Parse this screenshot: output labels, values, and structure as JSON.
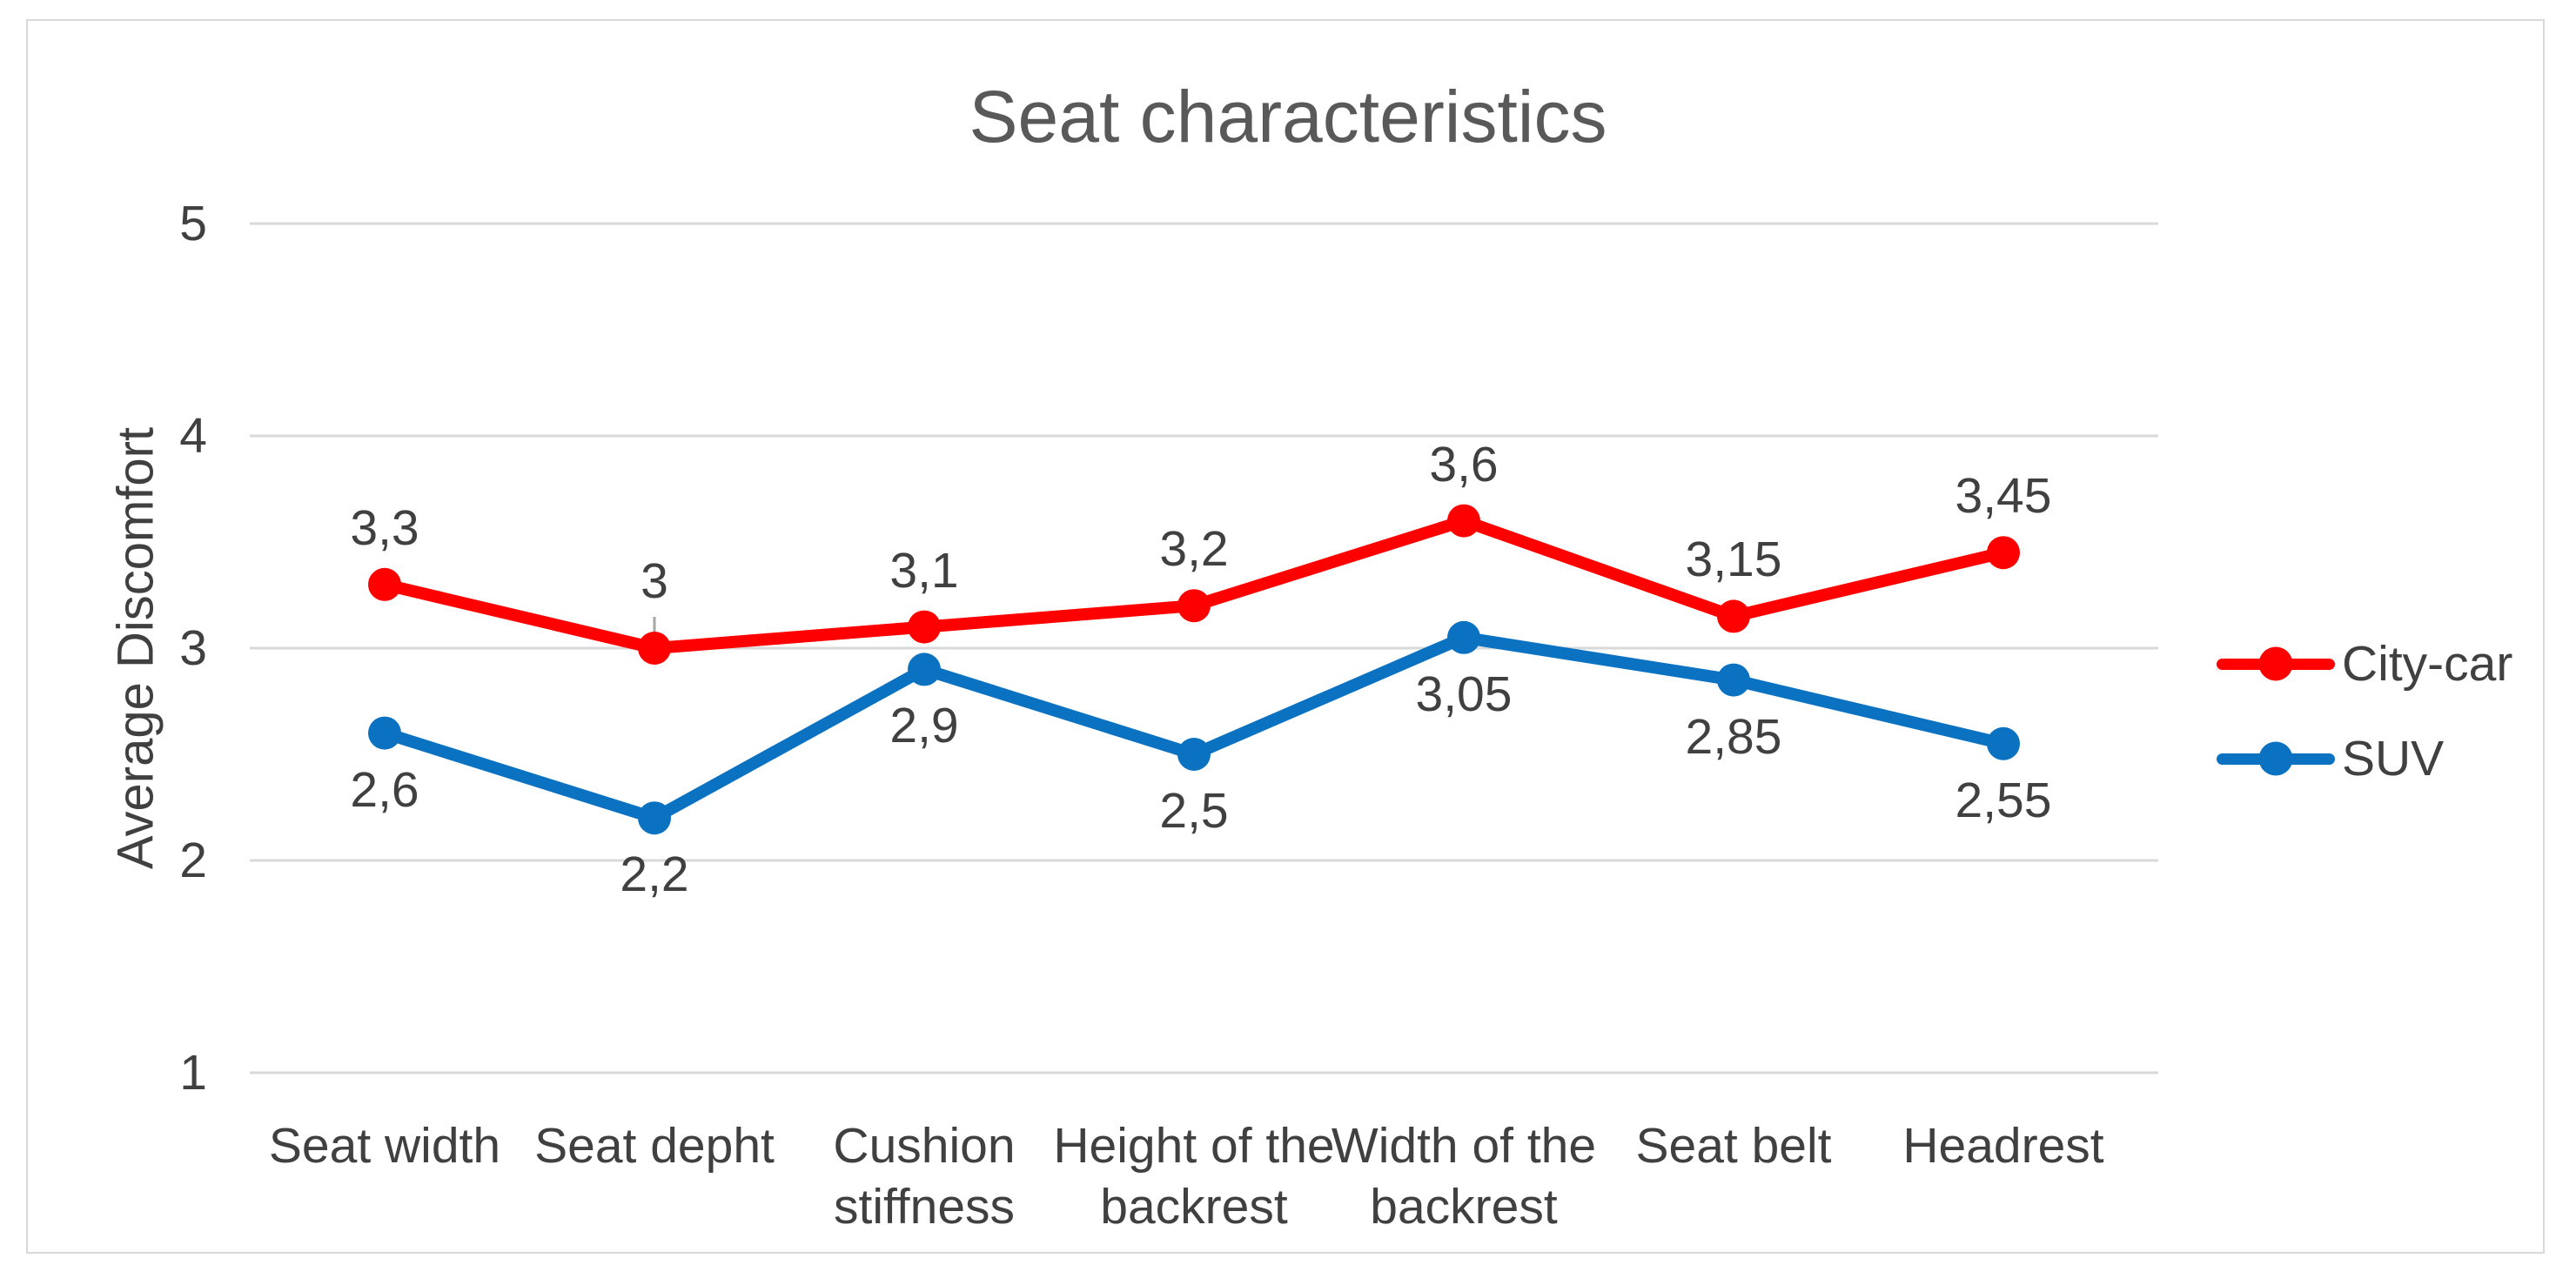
{
  "chart_data": {
    "type": "line",
    "title": "Seat characteristics",
    "ylabel": "Average Discomfort",
    "xlabel": "",
    "ylim": [
      1,
      5
    ],
    "yticks": [
      5,
      4,
      3,
      2,
      1
    ],
    "grid": true,
    "legend_position": "right-middle",
    "decimal_separator": ",",
    "categories": [
      "Seat width",
      "Seat depht",
      "Cushion stiffness",
      "Height of the backrest",
      "Width of the backrest",
      "Seat belt",
      "Headrest"
    ],
    "categories_lines": [
      [
        "Seat width"
      ],
      [
        "Seat depht"
      ],
      [
        "Cushion",
        "stiffness"
      ],
      [
        "Height of the",
        "backrest"
      ],
      [
        "Width of the",
        "backrest"
      ],
      [
        "Seat belt"
      ],
      [
        "Headrest"
      ]
    ],
    "series": [
      {
        "name": "City-car",
        "color": "#FF0000",
        "values": [
          3.3,
          3.0,
          3.1,
          3.2,
          3.6,
          3.15,
          3.45
        ],
        "labels": [
          "3,3",
          "3",
          "3,1",
          "3,2",
          "3,6",
          "3,15",
          "3,45"
        ],
        "label_position": "above",
        "leader_line_category": "Seat depht"
      },
      {
        "name": "SUV",
        "color": "#0B72C2",
        "values": [
          2.6,
          2.2,
          2.9,
          2.5,
          3.05,
          2.85,
          2.55
        ],
        "labels": [
          "2,6",
          "2,2",
          "2,9",
          "2,5",
          "3,05",
          "2,85",
          "2,55"
        ],
        "label_position": "below"
      }
    ],
    "colors": {
      "background": "#FFFFFF",
      "frame_border": "#D9D9D9",
      "gridline": "#D9D9D9",
      "leader_line": "#A6A6A6",
      "title_text": "#595959",
      "axis_text": "#404040",
      "data_label_text": "#404040"
    }
  }
}
